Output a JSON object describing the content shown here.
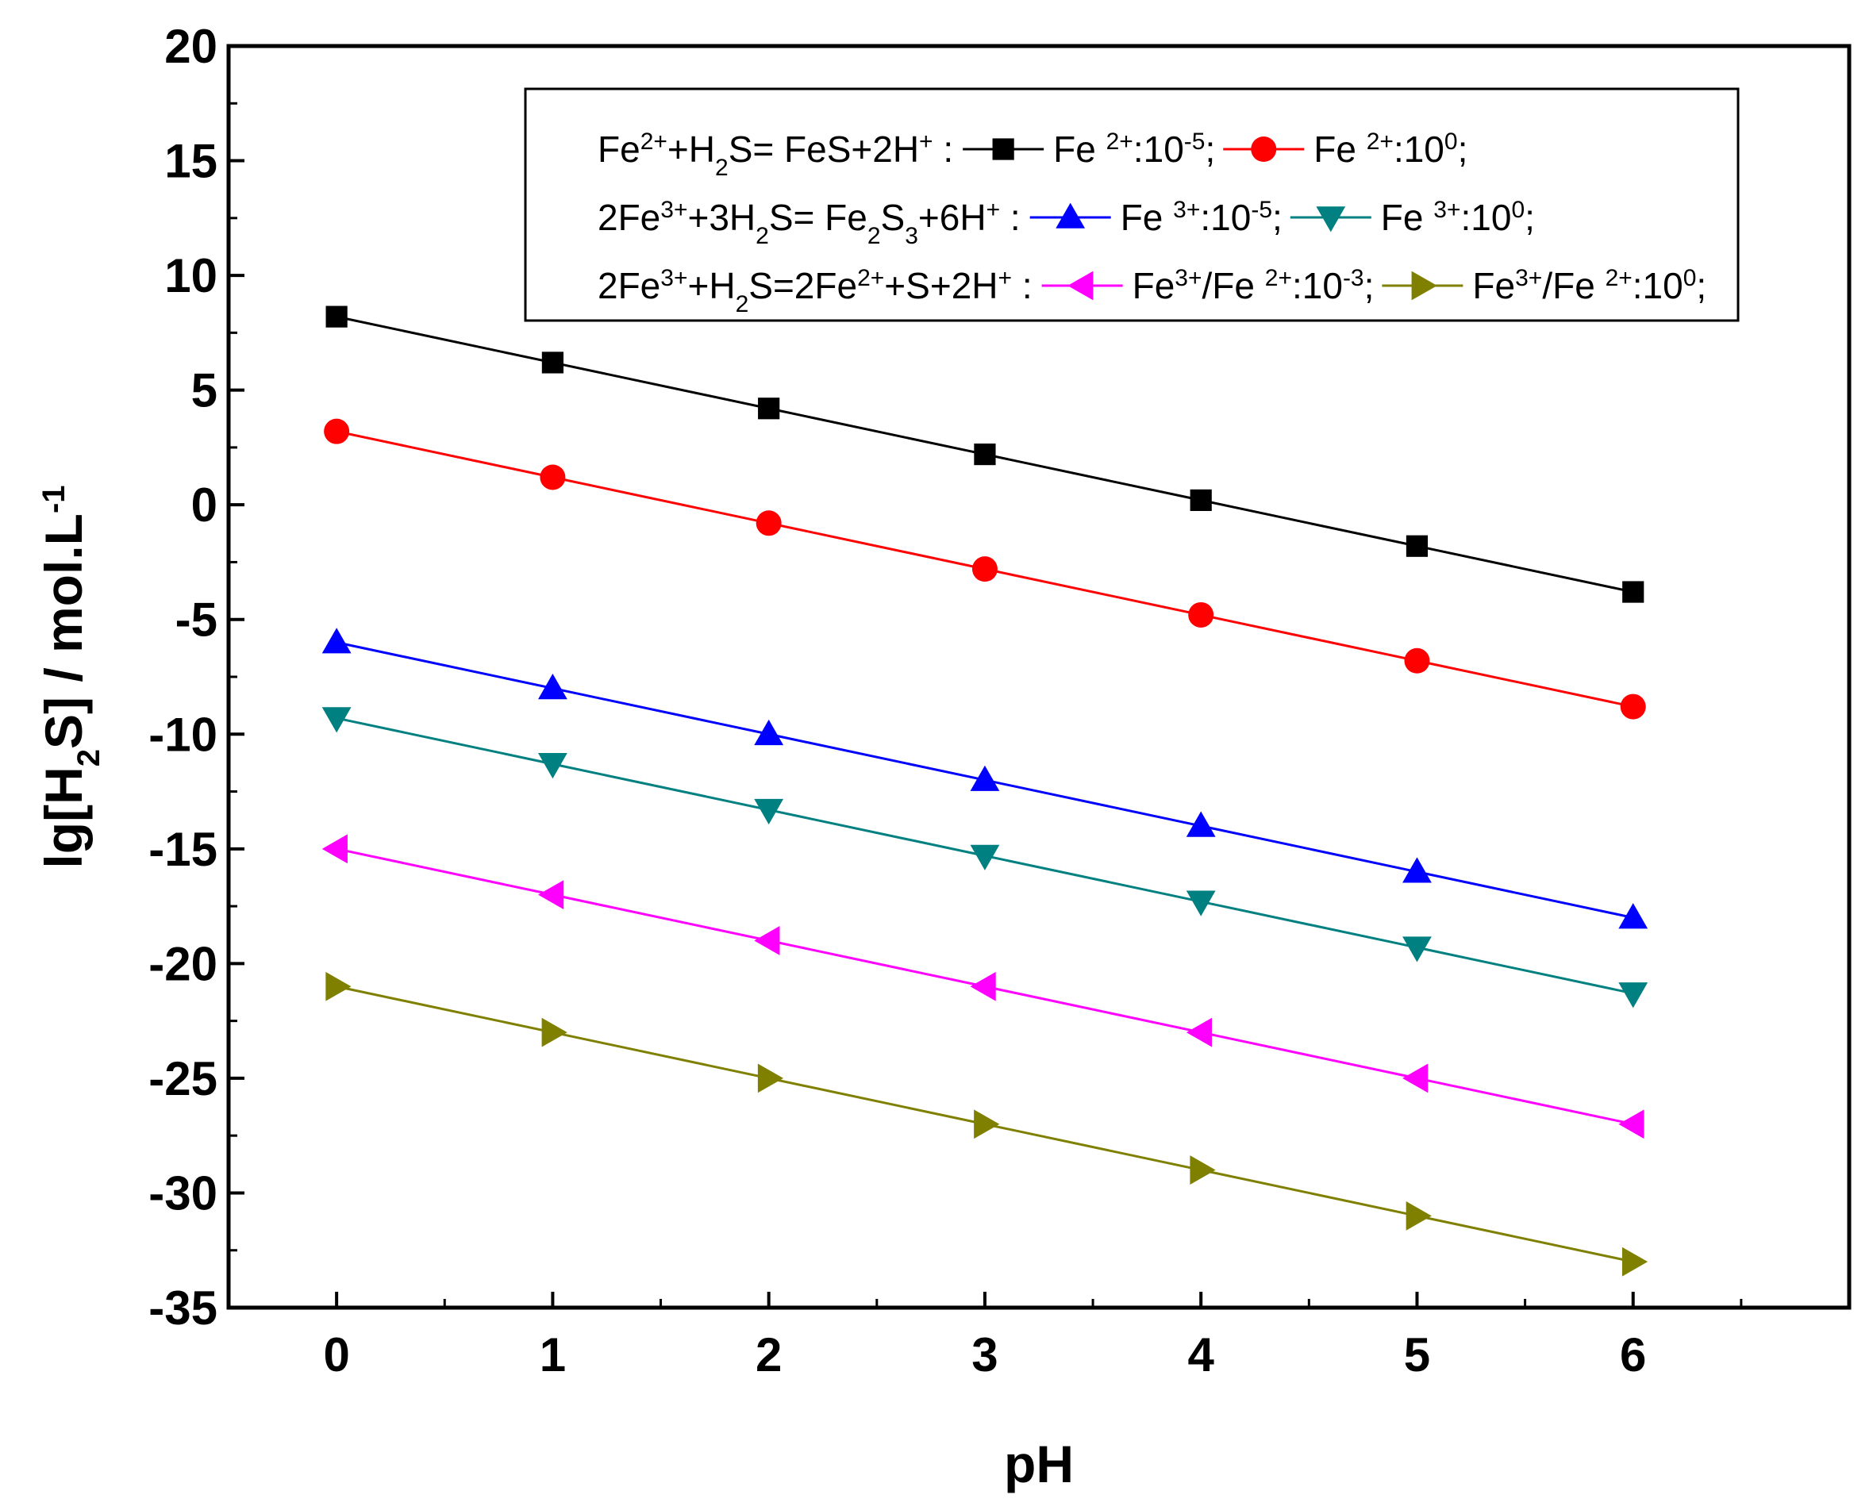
{
  "chart_data": {
    "type": "line",
    "title": "",
    "xlabel": "pH",
    "ylabel": {
      "pre": "lg[H",
      "sub": "2",
      "mid": "S] / mol.L",
      "sup": "-1"
    },
    "xlim": [
      -0.5,
      7.0
    ],
    "ylim": [
      -35,
      20
    ],
    "xticks": [
      "0",
      "1",
      "2",
      "3",
      "4",
      "5",
      "6"
    ],
    "yticks": [
      "20",
      "15",
      "10",
      "5",
      "0",
      "-5",
      "-10",
      "-15",
      "-20",
      "-25",
      "-30",
      "-35"
    ],
    "x": [
      0,
      1,
      2,
      3,
      4,
      5,
      6
    ],
    "series": [
      {
        "name": "Fe 2+:10-5",
        "color": "#000000",
        "marker": "square",
        "values": [
          8.2,
          6.2,
          4.2,
          2.2,
          0.2,
          -1.8,
          -3.8
        ]
      },
      {
        "name": "Fe 2+:100",
        "color": "#ff0000",
        "marker": "circle",
        "values": [
          3.2,
          1.2,
          -0.8,
          -2.8,
          -4.8,
          -6.8,
          -8.8
        ]
      },
      {
        "name": "Fe 3+:10-5",
        "color": "#0000ff",
        "marker": "triangle-up",
        "values": [
          -6.0,
          -8.0,
          -10.0,
          -12.0,
          -14.0,
          -16.0,
          -18.0
        ]
      },
      {
        "name": "Fe 3+:100",
        "color": "#008080",
        "marker": "triangle-down",
        "values": [
          -9.3,
          -11.3,
          -13.3,
          -15.3,
          -17.3,
          -19.3,
          -21.3
        ]
      },
      {
        "name": "Fe3+/Fe 2+:10-3",
        "color": "#ff00ff",
        "marker": "triangle-left",
        "values": [
          -15.0,
          -17.0,
          -19.0,
          -21.0,
          -23.0,
          -25.0,
          -27.0
        ]
      },
      {
        "name": "Fe3+/Fe 2+:100",
        "color": "#808000",
        "marker": "triangle-right",
        "values": [
          -21.0,
          -23.0,
          -25.0,
          -27.0,
          -29.0,
          -31.0,
          -33.0
        ]
      }
    ],
    "legend": {
      "position": "top-right",
      "rows": [
        {
          "reaction": [
            [
              "Fe",
              ""
            ],
            [
              "2+",
              "sup"
            ],
            [
              "+H",
              ""
            ],
            [
              "2",
              "sub"
            ],
            [
              "S= FeS+2H",
              ""
            ],
            [
              "+",
              "sup"
            ],
            [
              " :",
              ""
            ]
          ],
          "entries": [
            {
              "series": 0,
              "label": [
                [
                  "Fe ",
                  ""
                ],
                [
                  "2+",
                  "sup"
                ],
                [
                  ":10",
                  ""
                ],
                [
                  "-5",
                  "sup"
                ],
                [
                  ";",
                  ""
                ]
              ]
            },
            {
              "series": 1,
              "label": [
                [
                  "Fe ",
                  ""
                ],
                [
                  "2+",
                  "sup"
                ],
                [
                  ":10",
                  ""
                ],
                [
                  "0",
                  "sup"
                ],
                [
                  ";",
                  ""
                ]
              ]
            }
          ]
        },
        {
          "reaction": [
            [
              "2Fe",
              ""
            ],
            [
              "3+",
              "sup"
            ],
            [
              "+3H",
              ""
            ],
            [
              "2",
              "sub"
            ],
            [
              "S= Fe",
              ""
            ],
            [
              "2",
              "sub"
            ],
            [
              "S",
              ""
            ],
            [
              "3",
              "sub"
            ],
            [
              "+6H",
              ""
            ],
            [
              "+",
              "sup"
            ],
            [
              " :",
              ""
            ]
          ],
          "entries": [
            {
              "series": 2,
              "label": [
                [
                  "Fe ",
                  ""
                ],
                [
                  "3+",
                  "sup"
                ],
                [
                  ":10",
                  ""
                ],
                [
                  "-5",
                  "sup"
                ],
                [
                  ";",
                  ""
                ]
              ]
            },
            {
              "series": 3,
              "label": [
                [
                  "Fe ",
                  ""
                ],
                [
                  "3+",
                  "sup"
                ],
                [
                  ":10",
                  ""
                ],
                [
                  "0",
                  "sup"
                ],
                [
                  ";",
                  ""
                ]
              ]
            }
          ]
        },
        {
          "reaction": [
            [
              "2Fe",
              ""
            ],
            [
              "3+",
              "sup"
            ],
            [
              "+H",
              ""
            ],
            [
              "2",
              "sub"
            ],
            [
              "S=2Fe",
              ""
            ],
            [
              "2+",
              "sup"
            ],
            [
              "+S+2H",
              ""
            ],
            [
              "+",
              "sup"
            ],
            [
              " :",
              ""
            ]
          ],
          "entries": [
            {
              "series": 4,
              "label": [
                [
                  "Fe",
                  ""
                ],
                [
                  "3+",
                  "sup"
                ],
                [
                  "/Fe ",
                  ""
                ],
                [
                  "2+",
                  "sup"
                ],
                [
                  ":10",
                  ""
                ],
                [
                  "-3",
                  "sup"
                ],
                [
                  ";",
                  ""
                ]
              ]
            },
            {
              "series": 5,
              "label": [
                [
                  "Fe",
                  ""
                ],
                [
                  "3+",
                  "sup"
                ],
                [
                  "/Fe ",
                  ""
                ],
                [
                  "2+",
                  "sup"
                ],
                [
                  ":10",
                  ""
                ],
                [
                  "0",
                  "sup"
                ],
                [
                  ";",
                  ""
                ]
              ]
            }
          ]
        }
      ]
    }
  }
}
